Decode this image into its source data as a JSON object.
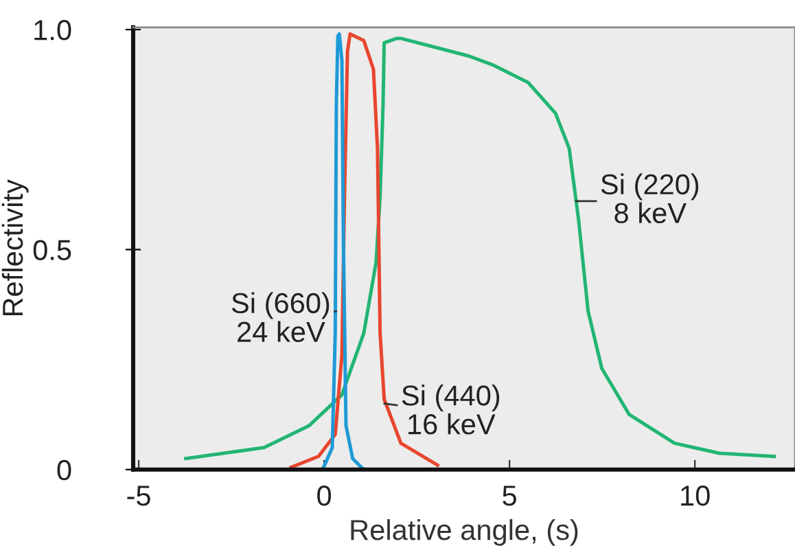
{
  "chart_data": {
    "type": "line",
    "xlabel": "Relative angle, (s)",
    "ylabel": "Reflectivity",
    "xlim": [
      -5.15,
      12.7
    ],
    "ylim": [
      0,
      1.005
    ],
    "xticks": [
      -5,
      0,
      5,
      10
    ],
    "yticks": [
      0,
      0.5,
      {
        "value": 1,
        "label": "1.0"
      }
    ],
    "grid": false,
    "legend": false,
    "marker": "none",
    "line_style": "solid",
    "series": [
      {
        "color": "#22b573",
        "x": [
          -3.73,
          -1.62,
          -0.4,
          0.48,
          1.07,
          1.4,
          1.51,
          1.59,
          1.62,
          1.96,
          2.07,
          3.9,
          4.54,
          5.5,
          6.24,
          6.61,
          6.86,
          7.12,
          7.49,
          8.23,
          9.45,
          10.66,
          12.14
        ],
        "values": [
          0.025,
          0.05,
          0.1,
          0.17,
          0.31,
          0.47,
          0.62,
          0.83,
          0.97,
          0.98,
          0.98,
          0.94,
          0.92,
          0.88,
          0.81,
          0.73,
          0.57,
          0.36,
          0.23,
          0.125,
          0.06,
          0.037,
          0.03
        ]
      },
      {
        "color": "#e8462f",
        "x": [
          -0.89,
          -0.15,
          0.3,
          0.48,
          0.55,
          0.63,
          0.7,
          1.07,
          1.33,
          1.44,
          1.51,
          1.62,
          2.07,
          3.06
        ],
        "values": [
          0.005,
          0.03,
          0.08,
          0.26,
          0.62,
          0.95,
          0.99,
          0.975,
          0.91,
          0.73,
          0.31,
          0.16,
          0.06,
          0.01
        ]
      },
      {
        "color": "#1e9ad6",
        "x": [
          -0.04,
          0.22,
          0.3,
          0.33,
          0.37,
          0.41,
          0.48,
          0.52,
          0.59,
          0.77,
          1.03
        ],
        "values": [
          0.0,
          0.05,
          0.31,
          0.83,
          0.985,
          0.99,
          0.93,
          0.52,
          0.1,
          0.025,
          0.003
        ]
      }
    ],
    "annotations": [
      {
        "text": "Si (660)\n24 keV",
        "x": 0.33,
        "y": 0.36
      },
      {
        "text": "Si (440)\n16 keV",
        "x": 1.62,
        "y": 0.15
      },
      {
        "text": "Si (220)\n8 keV",
        "x": 6.79,
        "y": 0.61
      }
    ]
  }
}
